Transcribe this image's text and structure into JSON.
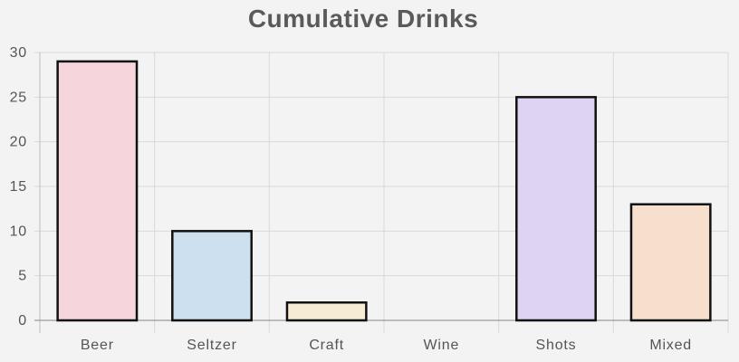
{
  "chart_data": {
    "type": "bar",
    "title": "Cumulative Drinks",
    "xlabel": "",
    "ylabel": "",
    "categories": [
      "Beer",
      "Seltzer",
      "Craft",
      "Wine",
      "Shots",
      "Mixed"
    ],
    "values": [
      29,
      10,
      2,
      0,
      25,
      13
    ],
    "ylim": [
      0,
      30
    ],
    "yticks": [
      0,
      5,
      10,
      15,
      20,
      25,
      30
    ],
    "grid": true,
    "legend": "none",
    "colors": [
      "#f6d5dc",
      "#cde0ef",
      "#f6ecd4",
      "#e3e7ea",
      "#ded3f3",
      "#f6dfcd"
    ],
    "bar_border_color": "#111111"
  }
}
